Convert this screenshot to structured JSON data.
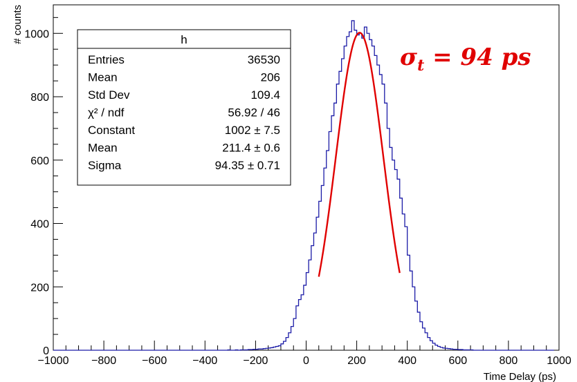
{
  "chart_data": {
    "type": "histogram",
    "xlabel": "Time Delay (ps)",
    "ylabel": "# counts",
    "xlim": [
      -1000,
      1000
    ],
    "ylim": [
      0,
      1090
    ],
    "x_ticks": [
      "−1000",
      "−800",
      "−600",
      "−400",
      "−200",
      "0",
      "200",
      "400",
      "600",
      "800",
      "1000"
    ],
    "x_tick_values": [
      -1000,
      -800,
      -600,
      -400,
      -200,
      0,
      200,
      400,
      600,
      800,
      1000
    ],
    "y_ticks": [
      "0",
      "200",
      "400",
      "600",
      "800",
      "1000"
    ],
    "y_tick_values": [
      0,
      200,
      400,
      600,
      800,
      1000
    ],
    "grid": false,
    "bin_width": 10,
    "series": [
      {
        "kind": "histogram",
        "color": "#1a1aa6",
        "bin_start": -1000,
        "values": [
          0,
          0,
          0,
          0,
          0,
          0,
          0,
          0,
          0,
          0,
          0,
          0,
          0,
          0,
          0,
          0,
          0,
          0,
          0,
          0,
          0,
          0,
          0,
          0,
          0,
          0,
          0,
          0,
          0,
          0,
          0,
          0,
          0,
          0,
          0,
          0,
          0,
          0,
          0,
          0,
          0,
          0,
          0,
          0,
          0,
          0,
          0,
          0,
          0,
          0,
          0,
          0,
          0,
          0,
          0,
          0,
          0,
          0,
          0,
          0,
          0,
          0,
          0,
          0,
          0,
          0,
          0,
          0,
          0,
          1,
          0,
          0,
          1,
          0,
          1,
          1,
          1,
          2,
          2,
          3,
          3,
          4,
          4,
          5,
          6,
          7,
          8,
          10,
          12,
          14,
          20,
          28,
          40,
          55,
          75,
          100,
          140,
          160,
          175,
          205,
          245,
          285,
          330,
          370,
          420,
          470,
          520,
          575,
          630,
          690,
          740,
          780,
          840,
          880,
          920,
          960,
          990,
          1005,
          1040,
          1010,
          995,
          1000,
          985,
          1020,
          1000,
          980,
          960,
          930,
          900,
          870,
          840,
          780,
          700,
          640,
          600,
          570,
          540,
          480,
          430,
          390,
          300,
          250,
          200,
          155,
          120,
          90,
          70,
          55,
          40,
          30,
          22,
          16,
          12,
          9,
          7,
          6,
          5,
          4,
          3,
          3,
          2,
          2,
          1,
          1,
          1,
          1,
          0,
          0,
          0,
          0,
          0,
          0,
          0,
          0,
          0,
          0,
          0,
          0,
          0,
          0,
          0,
          0,
          0,
          0,
          0,
          0,
          0,
          0,
          0,
          0,
          0,
          0,
          0,
          0,
          0,
          0,
          0,
          0
        ]
      },
      {
        "kind": "gaussian-fit",
        "color": "#e00000",
        "constant": 1002,
        "mean": 211.4,
        "sigma": 94.35,
        "x_range": [
          50,
          370
        ]
      }
    ],
    "legend": "top-left",
    "stats_box": {
      "title": "h",
      "rows": [
        {
          "label": "Entries",
          "value": "36530"
        },
        {
          "label": "Mean",
          "value": "206"
        },
        {
          "label": "Std Dev",
          "value": "109.4"
        },
        {
          "label": "χ² / ndf",
          "value": "56.92 / 46"
        },
        {
          "label": "Constant",
          "value": "1002 ± 7.5"
        },
        {
          "label": "Mean",
          "value": "211.4 ± 0.6"
        },
        {
          "label": "Sigma",
          "value": "94.35 ± 0.71"
        }
      ]
    },
    "annotation": "σt = 94 ps",
    "annotation_parts": {
      "symbol": "σ",
      "subscript": "t",
      "rest": " = 94 ps"
    }
  }
}
